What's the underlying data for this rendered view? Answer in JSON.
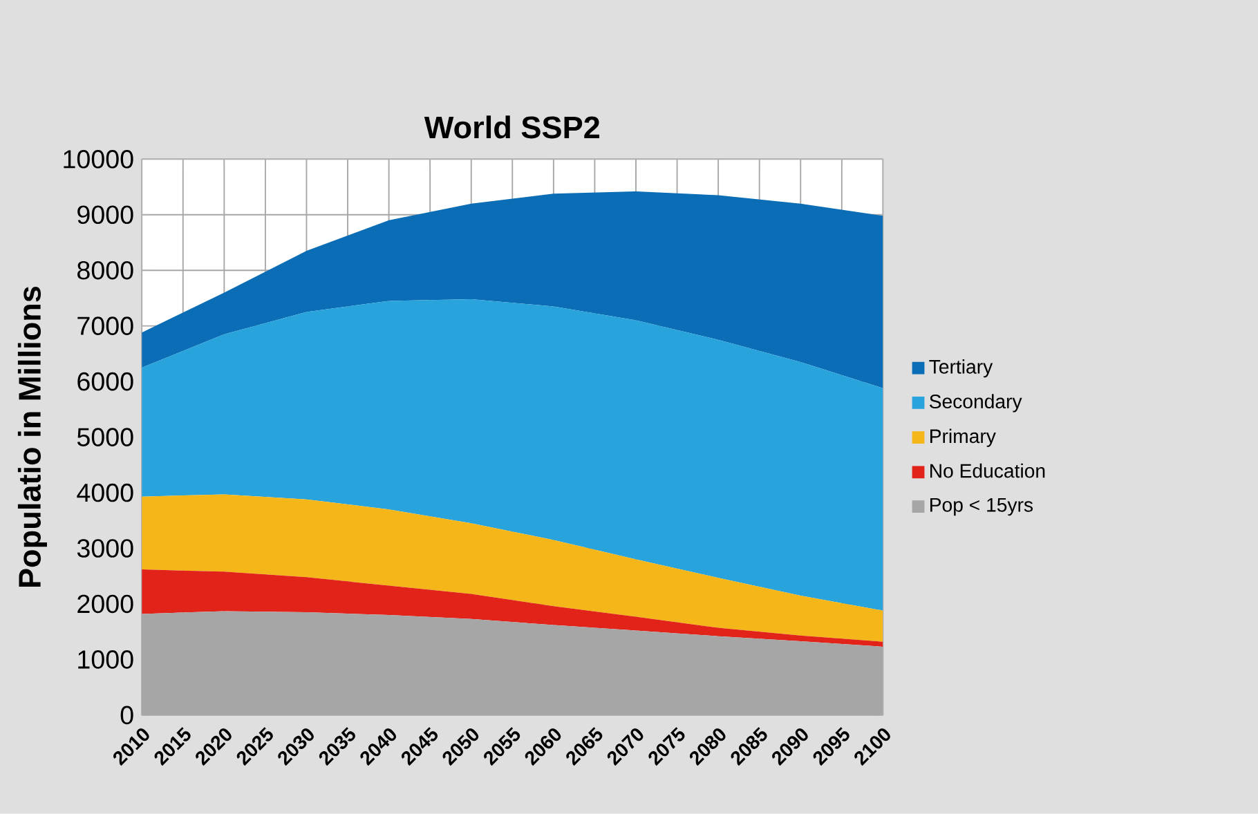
{
  "chart_data": {
    "type": "area",
    "title": "World  SSP2",
    "ylabel": "Populatio in Millions",
    "x": [
      2010,
      2020,
      2030,
      2040,
      2050,
      2060,
      2070,
      2080,
      2090,
      2100
    ],
    "stacked": true,
    "series": [
      {
        "name": "Pop < 15yrs",
        "color": "#a6a6a6",
        "values": [
          1820,
          1870,
          1850,
          1800,
          1730,
          1620,
          1520,
          1420,
          1330,
          1230
        ]
      },
      {
        "name": "No Education",
        "color": "#e2231a",
        "values": [
          800,
          710,
          630,
          530,
          450,
          340,
          250,
          150,
          100,
          90
        ]
      },
      {
        "name": "Primary",
        "color": "#f5b61a",
        "values": [
          1310,
          1390,
          1400,
          1370,
          1270,
          1190,
          1030,
          900,
          720,
          560
        ]
      },
      {
        "name": "Secondary",
        "color": "#29a3dc",
        "values": [
          2320,
          2880,
          3370,
          3750,
          4030,
          4200,
          4300,
          4280,
          4200,
          4000
        ]
      },
      {
        "name": "Tertiary",
        "color": "#0a6db5",
        "values": [
          630,
          750,
          1100,
          1450,
          1720,
          2030,
          2320,
          2600,
          2850,
          3100
        ]
      }
    ],
    "xlim": [
      2010,
      2100
    ],
    "xticks": [
      2010,
      2015,
      2020,
      2025,
      2030,
      2035,
      2040,
      2045,
      2050,
      2055,
      2060,
      2065,
      2070,
      2075,
      2080,
      2085,
      2090,
      2095,
      2100
    ],
    "ylim": [
      0,
      10000
    ],
    "yticks": [
      0,
      1000,
      2000,
      3000,
      4000,
      5000,
      6000,
      7000,
      8000,
      9000,
      10000
    ],
    "grid": true,
    "legend": "right"
  }
}
